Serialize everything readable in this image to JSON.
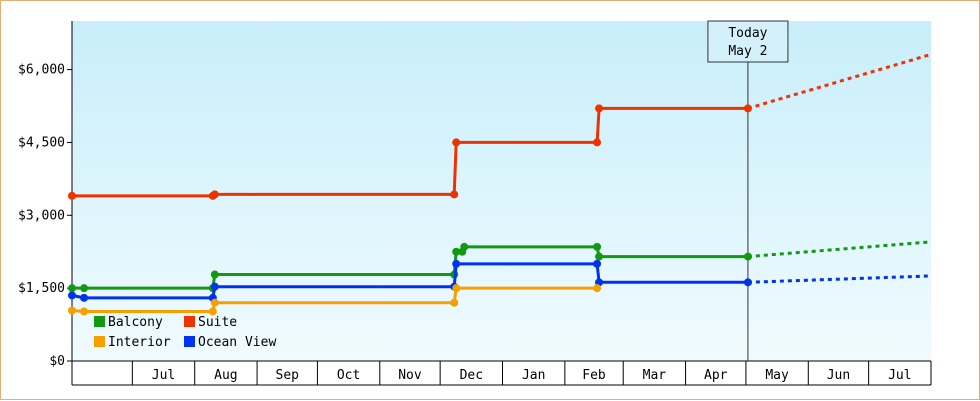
{
  "chart_data": {
    "type": "line",
    "y_axis": {
      "min": 0,
      "max": 7000,
      "ticks": [
        {
          "value": 0,
          "label": "$0"
        },
        {
          "value": 1500,
          "label": "$1,500"
        },
        {
          "value": 3000,
          "label": "$3,000"
        },
        {
          "value": 4500,
          "label": "$4,500"
        },
        {
          "value": 6000,
          "label": "$6,000"
        }
      ]
    },
    "x_axis": {
      "start": "2023-06-01",
      "end": "2024-07-31",
      "month_labels": [
        "Jul",
        "Aug",
        "Sep",
        "Oct",
        "Nov",
        "Dec",
        "Jan",
        "Feb",
        "Mar",
        "Apr",
        "May",
        "Jun",
        "Jul"
      ]
    },
    "today": {
      "date": "2024-05-02",
      "label_line1": "Today",
      "label_line2": "May 2"
    },
    "legend": [
      {
        "name": "Balcony",
        "color": "#119911"
      },
      {
        "name": "Suite",
        "color": "#ee3300"
      },
      {
        "name": "Interior",
        "color": "#f5a000"
      },
      {
        "name": "Ocean View",
        "color": "#0033ee"
      }
    ],
    "series": [
      {
        "name": "Suite",
        "color": "#ee3300",
        "points": [
          [
            "2023-06-01",
            3400
          ],
          [
            "2023-08-10",
            3400
          ],
          [
            "2023-08-11",
            3430
          ],
          [
            "2023-12-08",
            3430
          ],
          [
            "2023-12-09",
            4500
          ],
          [
            "2024-02-17",
            4500
          ],
          [
            "2024-02-18",
            5200
          ],
          [
            "2024-05-02",
            5200
          ]
        ],
        "forecast": [
          [
            "2024-05-02",
            5200
          ],
          [
            "2024-07-31",
            6300
          ]
        ]
      },
      {
        "name": "Balcony",
        "color": "#119911",
        "points": [
          [
            "2023-06-01",
            1500
          ],
          [
            "2023-06-07",
            1500
          ],
          [
            "2023-08-10",
            1500
          ],
          [
            "2023-08-11",
            1780
          ],
          [
            "2023-12-08",
            1780
          ],
          [
            "2023-12-09",
            2250
          ],
          [
            "2023-12-12",
            2250
          ],
          [
            "2023-12-13",
            2350
          ],
          [
            "2024-02-17",
            2350
          ],
          [
            "2024-02-18",
            2150
          ],
          [
            "2024-05-02",
            2150
          ]
        ],
        "forecast": [
          [
            "2024-05-02",
            2150
          ],
          [
            "2024-07-31",
            2450
          ]
        ]
      },
      {
        "name": "Ocean View",
        "color": "#0033ee",
        "points": [
          [
            "2023-06-01",
            1350
          ],
          [
            "2023-06-07",
            1300
          ],
          [
            "2023-08-10",
            1300
          ],
          [
            "2023-08-11",
            1530
          ],
          [
            "2023-12-08",
            1530
          ],
          [
            "2023-12-09",
            2000
          ],
          [
            "2024-02-17",
            2000
          ],
          [
            "2024-02-18",
            1620
          ],
          [
            "2024-05-02",
            1620
          ]
        ],
        "forecast": [
          [
            "2024-05-02",
            1620
          ],
          [
            "2024-07-31",
            1750
          ]
        ]
      },
      {
        "name": "Interior",
        "color": "#f5a000",
        "points": [
          [
            "2023-06-01",
            1040
          ],
          [
            "2023-06-07",
            1020
          ],
          [
            "2023-08-10",
            1020
          ],
          [
            "2023-08-11",
            1200
          ],
          [
            "2023-12-08",
            1200
          ],
          [
            "2023-12-09",
            1500
          ],
          [
            "2024-02-17",
            1500
          ]
        ],
        "forecast": []
      }
    ],
    "gradient": {
      "top": "#c8eefa",
      "bottom": "#f0fbff"
    }
  }
}
